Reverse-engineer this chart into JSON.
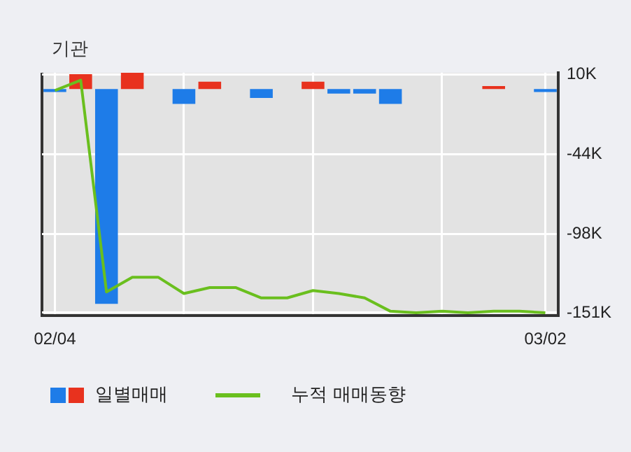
{
  "chart_data": {
    "type": "bar",
    "title": "기관",
    "categories": [
      "02/04",
      null,
      null,
      null,
      null,
      null,
      null,
      null,
      null,
      null,
      null,
      null,
      null,
      null,
      null,
      null,
      null,
      null,
      null,
      "03/02"
    ],
    "series": [
      {
        "name": "일별매매",
        "colors": [
          "#1e7ce8",
          "#e8321e",
          "#1e7ce8",
          "#e8321e",
          "#e8321e",
          "#1e7ce8",
          "#e8321e",
          "#e8321e",
          "#1e7ce8",
          "#e8321e",
          "#e8321e",
          "#1e7ce8",
          "#1e7ce8",
          "#1e7ce8",
          "#e8321e",
          "#e8321e",
          "#e8321e",
          "#e8321e",
          "#e8321e",
          "#1e7ce8"
        ],
        "values": [
          -2000,
          10000,
          -145000,
          11000,
          0,
          -10000,
          5000,
          0,
          -6000,
          0,
          5000,
          -3000,
          -3000,
          -10000,
          0,
          0,
          0,
          2000,
          0,
          -2000
        ]
      },
      {
        "type": "line",
        "name": "누적 매매동향",
        "color": "#6abf1e",
        "values": [
          -1000,
          6000,
          -137000,
          -127000,
          -127000,
          -138000,
          -134000,
          -134000,
          -141000,
          -141000,
          -136000,
          -138000,
          -141000,
          -150000,
          -151000,
          -150000,
          -151000,
          -150000,
          -150000,
          -151000
        ]
      }
    ],
    "ylim": [
      -153000,
      11000
    ],
    "yticks": [
      {
        "value": 10000,
        "label": "10K"
      },
      {
        "value": -44000,
        "label": "-44K"
      },
      {
        "value": -98000,
        "label": "-98K"
      },
      {
        "value": -151000,
        "label": "-151K"
      }
    ],
    "grid": true,
    "legend": "bottom",
    "marker": "none"
  }
}
